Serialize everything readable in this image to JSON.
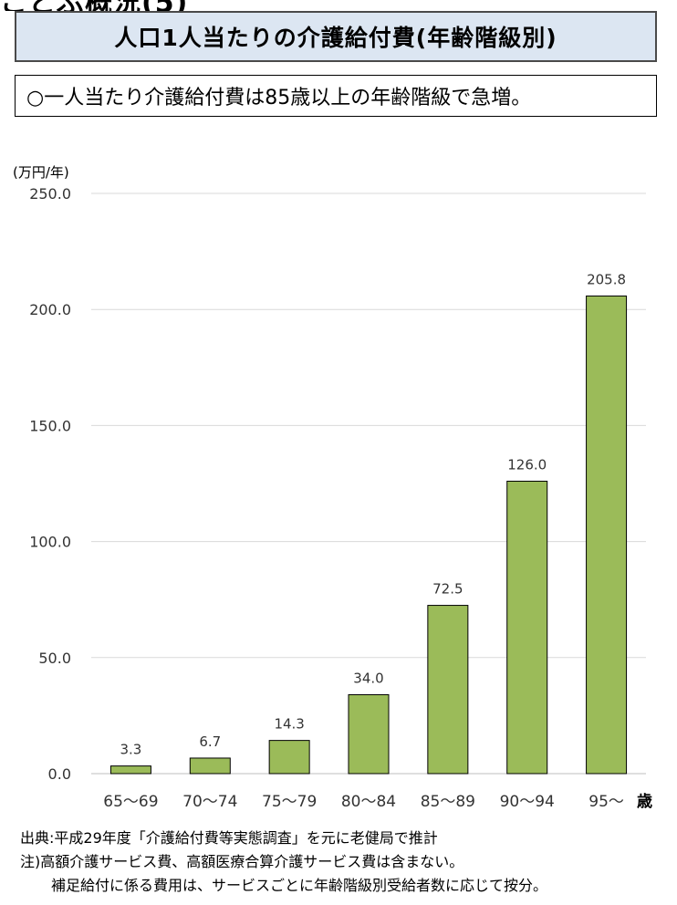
{
  "header": {
    "cut_text": "ことぶ概況(5)",
    "title": "人口1人当たりの介護給付費(年齢階級別)",
    "summary": "○一人当たり介護給付費は85歳以上の年齢階級で急増。"
  },
  "chart_data": {
    "type": "bar",
    "ylabel": "(万円/年)",
    "xlabel": "歳",
    "categories": [
      "65〜69",
      "70〜74",
      "75〜79",
      "80〜84",
      "85〜89",
      "90〜94",
      "95〜"
    ],
    "values": [
      3.3,
      6.7,
      14.3,
      34.0,
      72.5,
      126.0,
      205.8
    ],
    "value_labels": [
      "3.3",
      "6.7",
      "14.3",
      "34.0",
      "72.5",
      "126.0",
      "205.8"
    ],
    "ylim": [
      0,
      250
    ],
    "yticks": [
      0,
      50,
      100,
      150,
      200,
      250
    ],
    "ytick_labels": [
      "0.0",
      "50.0",
      "100.0",
      "150.0",
      "200.0",
      "250.0"
    ],
    "grid": true,
    "bar_color": "#9bbb59",
    "bar_edge_color": "#000000"
  },
  "notes": {
    "source": "出典:平成29年度「介護給付費等実態調査」を元に老健局で推計",
    "note1": "注)高額介護サービス費、高額医療合算介護サービス費は含まない。",
    "note2": "補足給付に係る費用は、サービスごとに年齢階級別受給者数に応じて按分。"
  }
}
